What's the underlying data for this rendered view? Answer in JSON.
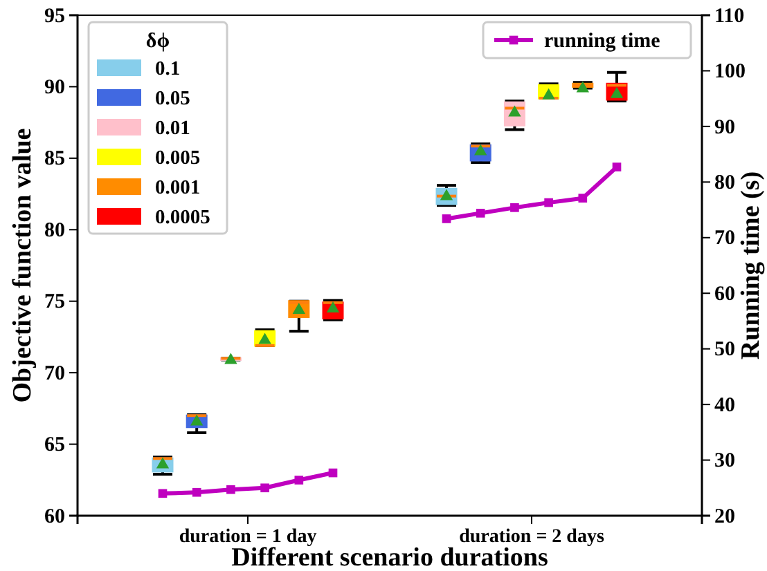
{
  "chart_data": {
    "type": "box",
    "xlabel": "Different scenario durations",
    "ylabel": "Objective function value",
    "y2label": "Running time (s)",
    "legend_title": "δϕ",
    "legend": "top left",
    "xlim": [
      0.4,
      2.6
    ],
    "xticks": [
      {
        "value": 1,
        "label": "duration = 1 day"
      },
      {
        "value": 2,
        "label": "duration = 2 days"
      }
    ],
    "ylim": [
      60,
      95
    ],
    "yticks": [
      60,
      65,
      70,
      75,
      80,
      85,
      90,
      95
    ],
    "y2lim": [
      20,
      110
    ],
    "y2ticks": [
      20,
      30,
      40,
      50,
      60,
      70,
      80,
      90,
      100,
      110
    ],
    "grid": false,
    "series": [
      {
        "name": "0.1",
        "color": "#87ceeb",
        "x": [
          0.7,
          1.7
        ],
        "boxes": [
          {
            "low": 62.9,
            "q1": 63.1,
            "median": 64.0,
            "q3": 64.0,
            "high": 64.1,
            "mean": 63.7
          },
          {
            "low": 81.7,
            "q1": 81.8,
            "median": 82.35,
            "q3": 82.85,
            "high": 83.1,
            "mean": 82.45
          }
        ]
      },
      {
        "name": "0.05",
        "color": "#4169e1",
        "x": [
          0.82,
          1.82
        ],
        "boxes": [
          {
            "low": 65.8,
            "q1": 66.2,
            "median": 67.0,
            "q3": 67.0,
            "high": 67.06,
            "mean": 66.7
          },
          {
            "low": 84.7,
            "q1": 84.85,
            "median": 85.85,
            "q3": 85.9,
            "high": 86.0,
            "mean": 85.6
          }
        ]
      },
      {
        "name": "0.01",
        "color": "#ffc0cb",
        "x": [
          0.94,
          1.94
        ],
        "boxes": [
          {
            "low": 70.9,
            "q1": 70.95,
            "median": 71.0,
            "q3": 71.0,
            "high": 71.0,
            "mean": 71.0
          },
          {
            "low": 87.0,
            "q1": 87.3,
            "median": 88.5,
            "q3": 88.9,
            "high": 89.0,
            "mean": 88.3
          }
        ]
      },
      {
        "name": "0.005",
        "color": "#ffff00",
        "x": [
          1.06,
          2.06
        ],
        "boxes": [
          {
            "low": 71.9,
            "q1": 71.9,
            "median": 71.9,
            "q3": 72.9,
            "high": 73.0,
            "mean": 72.4
          },
          {
            "low": 89.2,
            "q1": 89.2,
            "median": 89.2,
            "q3": 90.1,
            "high": 90.2,
            "mean": 89.5
          }
        ]
      },
      {
        "name": "0.001",
        "color": "#ff8c00",
        "x": [
          1.18,
          2.18
        ],
        "boxes": [
          {
            "low": 72.9,
            "q1": 73.9,
            "median": 74.9,
            "q3": 75.0,
            "high": 75.0,
            "mean": 74.5
          },
          {
            "low": 89.9,
            "q1": 90.0,
            "median": 90.1,
            "q3": 90.2,
            "high": 90.3,
            "mean": 90.0
          }
        ]
      },
      {
        "name": "0.0005",
        "color": "#ff0000",
        "x": [
          1.3,
          2.3
        ],
        "boxes": [
          {
            "low": 73.7,
            "q1": 73.8,
            "median": 74.9,
            "q3": 74.9,
            "high": 75.05,
            "mean": 74.6
          },
          {
            "low": 89.0,
            "q1": 89.1,
            "median": 90.1,
            "q3": 90.2,
            "high": 91.0,
            "mean": 89.6
          }
        ]
      },
      {
        "name": "running time",
        "type": "line",
        "axis": "y2",
        "color": "#bf00bf",
        "marker": "square",
        "x": [
          0.7,
          0.82,
          0.94,
          1.06,
          1.18,
          1.3,
          1.5,
          1.7,
          1.82,
          1.94,
          2.06,
          2.18,
          2.3
        ],
        "values": [
          24,
          24.2,
          24.7,
          25,
          26.4,
          27.7,
          null,
          73.4,
          74.4,
          75.4,
          76.3,
          77.1,
          82.7
        ]
      }
    ]
  }
}
